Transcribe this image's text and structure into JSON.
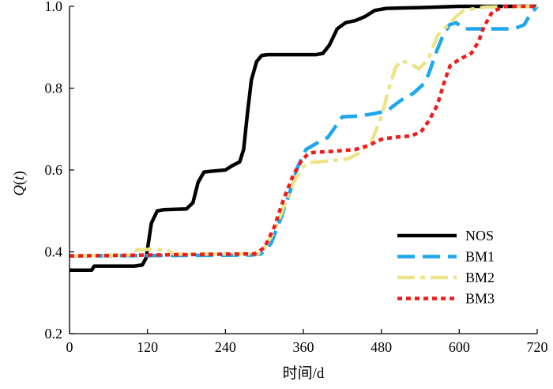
{
  "chart_data": {
    "type": "line",
    "title": "",
    "xlabel": "时间/d",
    "ylabel_prefix": "Q(",
    "ylabel_var": "t",
    "ylabel_suffix": ")",
    "xlim": [
      0,
      720
    ],
    "ylim": [
      0.2,
      1.0
    ],
    "xticks": [
      0,
      120,
      240,
      360,
      480,
      600,
      720
    ],
    "xtick_labels": [
      "0",
      "120",
      "240",
      "360",
      "480",
      "600",
      "720"
    ],
    "yticks": [
      0.2,
      0.4,
      0.6,
      0.8,
      1.0
    ],
    "ytick_labels": [
      "0.2",
      "0.4",
      "0.6",
      "0.8",
      "1.0"
    ],
    "grid": false,
    "legend_position": "bottom-right",
    "series": [
      {
        "name": "NOS",
        "color": "#000000",
        "style": "solid",
        "x": [
          0,
          34,
          38,
          100,
          112,
          118,
          126,
          135,
          145,
          180,
          190,
          198,
          207,
          218,
          240,
          250,
          262,
          268,
          274,
          280,
          288,
          296,
          305,
          320,
          380,
          390,
          400,
          412,
          425,
          440,
          455,
          470,
          488,
          540,
          600,
          720
        ],
        "y": [
          0.355,
          0.355,
          0.365,
          0.365,
          0.368,
          0.385,
          0.47,
          0.5,
          0.503,
          0.505,
          0.52,
          0.57,
          0.595,
          0.597,
          0.6,
          0.61,
          0.62,
          0.65,
          0.74,
          0.82,
          0.865,
          0.88,
          0.882,
          0.882,
          0.882,
          0.885,
          0.905,
          0.945,
          0.96,
          0.965,
          0.975,
          0.99,
          0.995,
          0.997,
          1.0,
          1.0
        ]
      },
      {
        "name": "BM1",
        "color": "#1ea7ef",
        "style": "dashed",
        "x": [
          0,
          280,
          295,
          310,
          325,
          340,
          352,
          364,
          380,
          398,
          420,
          446,
          470,
          489,
          510,
          529,
          545,
          553,
          565,
          574,
          585,
          595,
          607,
          684,
          700,
          708,
          720
        ],
        "y": [
          0.39,
          0.392,
          0.395,
          0.42,
          0.48,
          0.55,
          0.61,
          0.65,
          0.665,
          0.68,
          0.73,
          0.732,
          0.738,
          0.745,
          0.77,
          0.787,
          0.81,
          0.835,
          0.89,
          0.925,
          0.955,
          0.96,
          0.945,
          0.945,
          0.955,
          0.977,
          1.0
        ]
      },
      {
        "name": "BM2",
        "color": "#ede48a",
        "style": "dash-dot",
        "x": [
          0,
          90,
          105,
          120,
          150,
          160,
          290,
          300,
          315,
          330,
          345,
          358,
          368,
          400,
          430,
          450,
          465,
          480,
          492,
          502,
          510,
          525,
          538,
          552,
          567,
          583,
          595,
          607,
          640,
          720
        ],
        "y": [
          0.39,
          0.392,
          0.405,
          0.406,
          0.405,
          0.395,
          0.395,
          0.41,
          0.45,
          0.51,
          0.57,
          0.605,
          0.618,
          0.622,
          0.628,
          0.645,
          0.67,
          0.73,
          0.8,
          0.85,
          0.867,
          0.86,
          0.847,
          0.87,
          0.93,
          0.955,
          0.975,
          0.99,
          0.998,
          1.0
        ]
      },
      {
        "name": "BM3",
        "color": "#ee1c1c",
        "style": "dotted",
        "x": [
          0,
          285,
          300,
          315,
          330,
          345,
          358,
          368,
          376,
          400,
          440,
          460,
          480,
          500,
          525,
          541,
          553,
          566,
          578,
          586,
          600,
          619,
          630,
          638,
          651,
          670,
          720
        ],
        "y": [
          0.39,
          0.395,
          0.41,
          0.46,
          0.53,
          0.59,
          0.625,
          0.64,
          0.643,
          0.645,
          0.65,
          0.66,
          0.675,
          0.68,
          0.683,
          0.693,
          0.72,
          0.758,
          0.82,
          0.855,
          0.87,
          0.886,
          0.915,
          0.95,
          0.987,
          1.0,
          1.0
        ]
      }
    ]
  }
}
